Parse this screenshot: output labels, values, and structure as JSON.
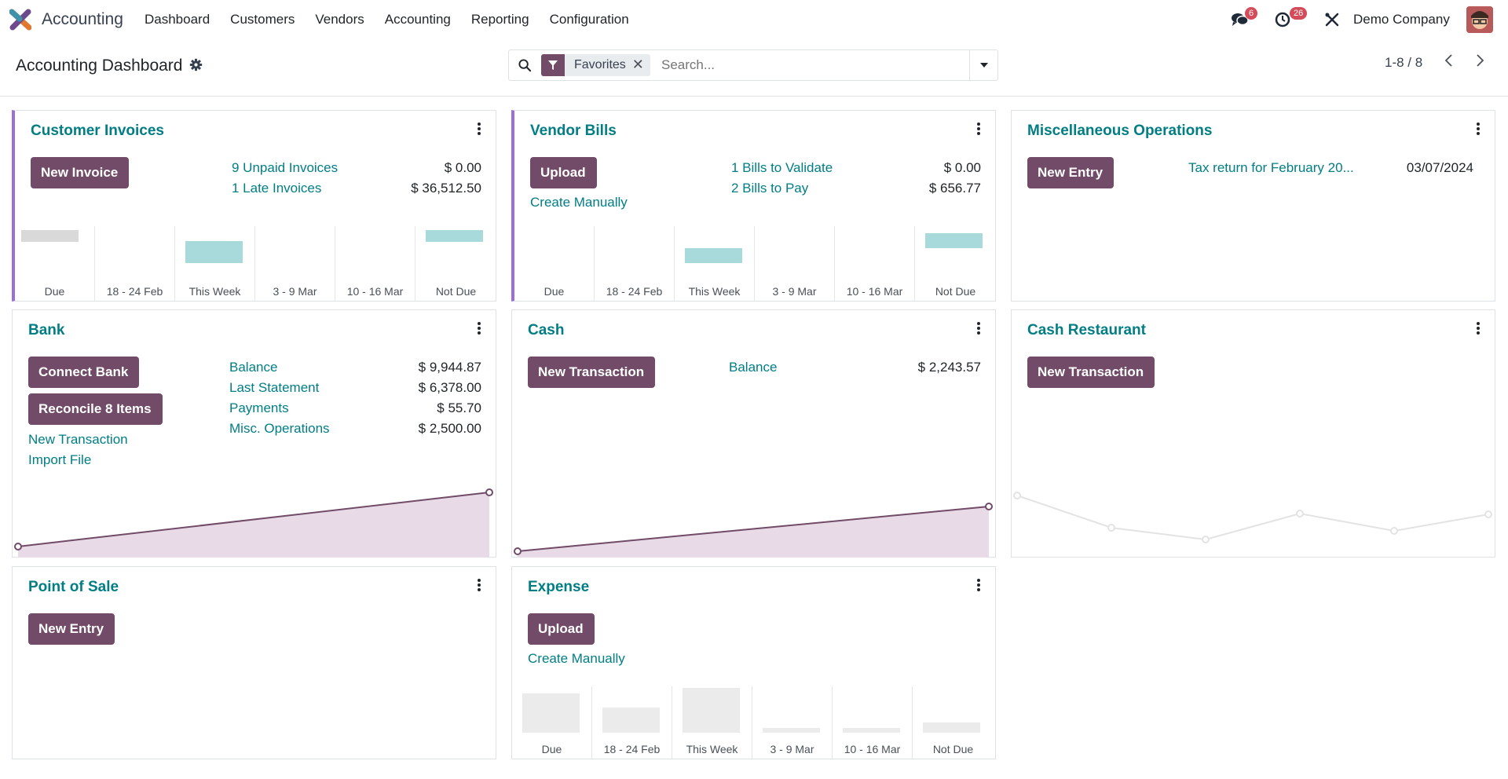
{
  "navbar": {
    "app_name": "Accounting",
    "menu": [
      "Dashboard",
      "Customers",
      "Vendors",
      "Accounting",
      "Reporting",
      "Configuration"
    ],
    "messages_count": "6",
    "activities_count": "26",
    "company": "Demo Company"
  },
  "control": {
    "title": "Accounting Dashboard",
    "facet": "Favorites",
    "search_placeholder": "Search...",
    "pager": "1-8 / 8"
  },
  "cards": {
    "customer_invoices": {
      "title": "Customer Invoices",
      "button": "New Invoice",
      "links": [
        "9 Unpaid Invoices",
        "1 Late Invoices"
      ],
      "amounts": [
        "$ 0.00",
        "$ 36,512.50"
      ],
      "bar_labels": [
        "Due",
        "18 - 24 Feb",
        "This Week",
        "3 - 9 Mar",
        "10 - 16 Mar",
        "Not Due"
      ]
    },
    "vendor_bills": {
      "title": "Vendor Bills",
      "button": "Upload",
      "create": "Create Manually",
      "links": [
        "1 Bills to Validate",
        "2 Bills to Pay"
      ],
      "amounts": [
        "$ 0.00",
        "$ 656.77"
      ],
      "bar_labels": [
        "Due",
        "18 - 24 Feb",
        "This Week",
        "3 - 9 Mar",
        "10 - 16 Mar",
        "Not Due"
      ]
    },
    "misc": {
      "title": "Miscellaneous Operations",
      "button": "New Entry",
      "link": "Tax return for February 20...",
      "date": "03/07/2024"
    },
    "bank": {
      "title": "Bank",
      "button1": "Connect Bank",
      "button2": "Reconcile 8 Items",
      "link1": "New Transaction",
      "link2": "Import File",
      "rows": [
        {
          "label": "Balance",
          "value": "$ 9,944.87"
        },
        {
          "label": "Last Statement",
          "value": "$ 6,378.00"
        },
        {
          "label": "Payments",
          "value": "$ 55.70"
        },
        {
          "label": "Misc. Operations",
          "value": "$ 2,500.00"
        }
      ]
    },
    "cash": {
      "title": "Cash",
      "button": "New Transaction",
      "label": "Balance",
      "value": "$ 2,243.57"
    },
    "cash_restaurant": {
      "title": "Cash Restaurant",
      "button": "New Transaction"
    },
    "pos": {
      "title": "Point of Sale",
      "button": "New Entry"
    },
    "expense": {
      "title": "Expense",
      "button": "Upload",
      "create": "Create Manually",
      "bar_labels": [
        "Due",
        "18 - 24 Feb",
        "This Week",
        "3 - 9 Mar",
        "10 - 16 Mar",
        "Not Due"
      ]
    }
  },
  "colors": {
    "brand": "#714b67",
    "link": "#017e84",
    "accent": "#9b6fd6",
    "bar": "#a8dadc"
  }
}
